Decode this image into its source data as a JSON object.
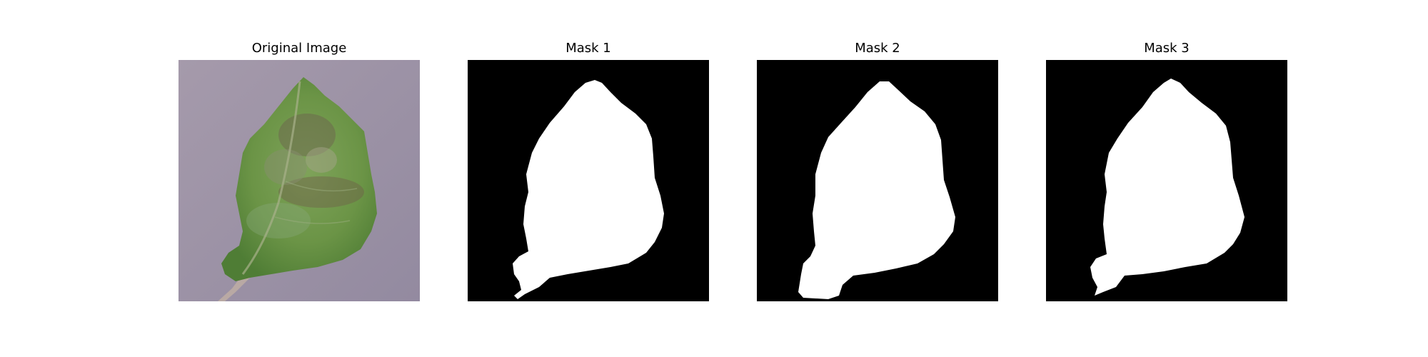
{
  "panels": [
    {
      "title": "Original Image",
      "kind": "photo"
    },
    {
      "title": "Mask 1",
      "kind": "mask"
    },
    {
      "title": "Mask 2",
      "kind": "mask"
    },
    {
      "title": "Mask 3",
      "kind": "mask"
    }
  ],
  "colors": {
    "background": "#ffffff",
    "photo_background": "#9a8fa3",
    "leaf_green": "#6f9a4a",
    "leaf_dark": "#4d7a34",
    "leaf_disease": "#7a6a55",
    "mask_background": "#000000",
    "mask_foreground": "#ffffff"
  }
}
